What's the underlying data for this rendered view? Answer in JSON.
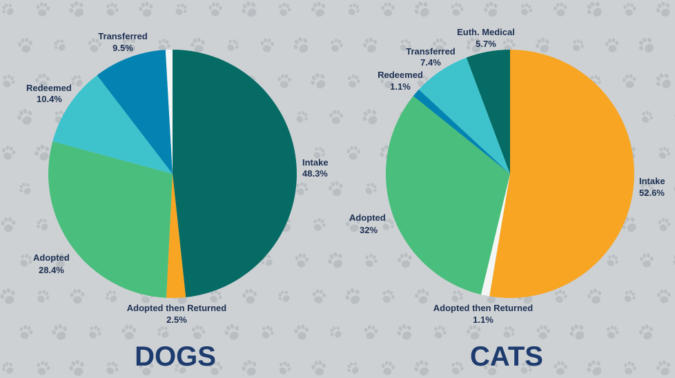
{
  "chart_data": [
    {
      "type": "pie",
      "title": "DOGS",
      "slices": [
        {
          "label": "Intake",
          "value": 48.3,
          "value_label": "48.3%",
          "color": "#056b64"
        },
        {
          "label": "Adopted then Returned",
          "value": 2.5,
          "value_label": "2.5%",
          "color": "#f7a523"
        },
        {
          "label": "Adopted",
          "value": 28.4,
          "value_label": "28.4%",
          "color": "#4abe7c"
        },
        {
          "label": "Redeemed",
          "value": 10.4,
          "value_label": "10.4%",
          "color": "#3ec3cd"
        },
        {
          "label": "Transferred",
          "value": 9.5,
          "value_label": "9.5%",
          "color": "#0283b1"
        },
        {
          "label": "",
          "value": 0.9,
          "value_label": "",
          "color": "#f4f6f6"
        }
      ]
    },
    {
      "type": "pie",
      "title": "CATS",
      "slices": [
        {
          "label": "Intake",
          "value": 52.6,
          "value_label": "52.6%",
          "color": "#f7a523"
        },
        {
          "label": "Adopted then Returned",
          "value": 1.1,
          "value_label": "1.1%",
          "color": "#f4f6f6"
        },
        {
          "label": "Adopted",
          "value": 32,
          "value_label": "32%",
          "color": "#4abe7c"
        },
        {
          "label": "Redeemed",
          "value": 1.1,
          "value_label": "1.1%",
          "color": "#0283b1"
        },
        {
          "label": "Transferred",
          "value": 7.4,
          "value_label": "7.4%",
          "color": "#3ec3cd"
        },
        {
          "label": "Euth. Medical",
          "value": 5.7,
          "value_label": "5.7%",
          "color": "#056b64"
        }
      ]
    }
  ],
  "colors": {
    "background": "#cdd1d4",
    "paw_print": "#b9bec2",
    "label_text": "#1d2f52",
    "title_text": "#1d3b6e"
  },
  "background_icon": "paw-print-icon"
}
